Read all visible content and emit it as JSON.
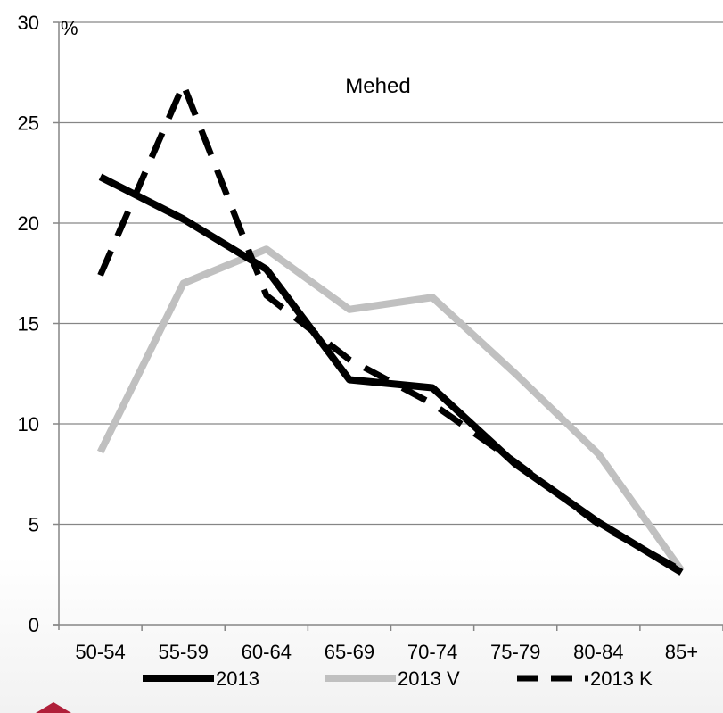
{
  "chart_data": {
    "type": "line",
    "title": "Mehed",
    "ylabel": "%",
    "xlabel": "",
    "categories": [
      "50-54",
      "55-59",
      "60-64",
      "65-69",
      "70-74",
      "75-79",
      "80-84",
      "85+"
    ],
    "ylim": [
      0,
      30
    ],
    "yticks": [
      0,
      5,
      10,
      15,
      20,
      25,
      30
    ],
    "grid": true,
    "legend_position": "bottom",
    "series": [
      {
        "name": "2013",
        "values": [
          22.3,
          20.2,
          17.7,
          12.2,
          11.8,
          8.0,
          5.1,
          2.6
        ],
        "color": "#000000",
        "style": "solid"
      },
      {
        "name": "2013 V",
        "values": [
          8.6,
          17.0,
          18.7,
          15.7,
          16.3,
          12.5,
          8.5,
          2.7
        ],
        "color": "#c0c0c0",
        "style": "solid"
      },
      {
        "name": "2013 K",
        "values": [
          17.4,
          26.9,
          16.4,
          13.2,
          11.0,
          8.1,
          5.0,
          2.7
        ],
        "color": "#000000",
        "style": "dashed"
      }
    ]
  },
  "icons": {
    "corner_logo": "red-house-logo-icon"
  }
}
